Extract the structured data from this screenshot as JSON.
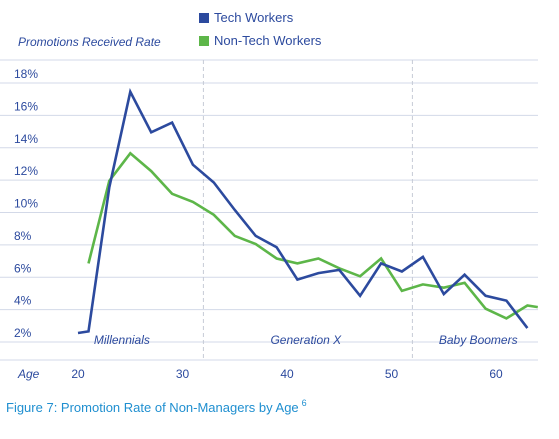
{
  "chart_data": {
    "type": "line",
    "ylabel": "Promotions Received Rate",
    "xlabel": "Age",
    "xlim": [
      14,
      64
    ],
    "ylim": [
      2,
      18
    ],
    "x_ticks": [
      20,
      30,
      40,
      50,
      60
    ],
    "y_ticks": [
      {
        "value": 2,
        "label": "2%"
      },
      {
        "value": 4,
        "label": "4%"
      },
      {
        "value": 6,
        "label": "6%"
      },
      {
        "value": 8,
        "label": "8%"
      },
      {
        "value": 10,
        "label": "10%"
      },
      {
        "value": 12,
        "label": "12%"
      },
      {
        "value": 14,
        "label": "14%"
      },
      {
        "value": 16,
        "label": "16%"
      },
      {
        "value": 18,
        "label": "18%"
      }
    ],
    "grid": true,
    "legend_position": "top",
    "generations": [
      {
        "label": "Millennials",
        "center": 24.2
      },
      {
        "label": "Generation X",
        "center": 41.8
      },
      {
        "label": "Baby Boomers",
        "center": 58.3
      }
    ],
    "generation_boundaries": [
      32,
      52
    ],
    "series": [
      {
        "name": "Tech Workers",
        "color": "#2c4a9e",
        "x": [
          20,
          21,
          23,
          25,
          27,
          29,
          31,
          33,
          35,
          37,
          39,
          41,
          43,
          45,
          47,
          49,
          51,
          53,
          55,
          57,
          59,
          61,
          63
        ],
        "values": [
          2.0,
          2.1,
          11.0,
          16.9,
          14.4,
          15.0,
          12.4,
          11.3,
          9.6,
          8.0,
          7.3,
          5.3,
          5.7,
          5.9,
          4.3,
          6.3,
          5.8,
          6.7,
          4.4,
          5.6,
          4.3,
          4.0,
          2.3
        ]
      },
      {
        "name": "Non-Tech Workers",
        "color": "#5db649",
        "x": [
          21,
          23,
          25,
          27,
          29,
          31,
          33,
          35,
          37,
          39,
          41,
          43,
          45,
          47,
          49,
          51,
          53,
          55,
          57,
          59,
          61,
          63,
          64
        ],
        "values": [
          6.3,
          11.4,
          13.1,
          12.0,
          10.6,
          10.1,
          9.3,
          8.0,
          7.5,
          6.6,
          6.3,
          6.6,
          6.0,
          5.5,
          6.6,
          4.6,
          5.0,
          4.8,
          5.1,
          3.5,
          2.9,
          3.7,
          3.6
        ]
      }
    ]
  },
  "caption": "Figure 7: Promotion Rate of Non-Managers by Age",
  "caption_footnote": "6"
}
